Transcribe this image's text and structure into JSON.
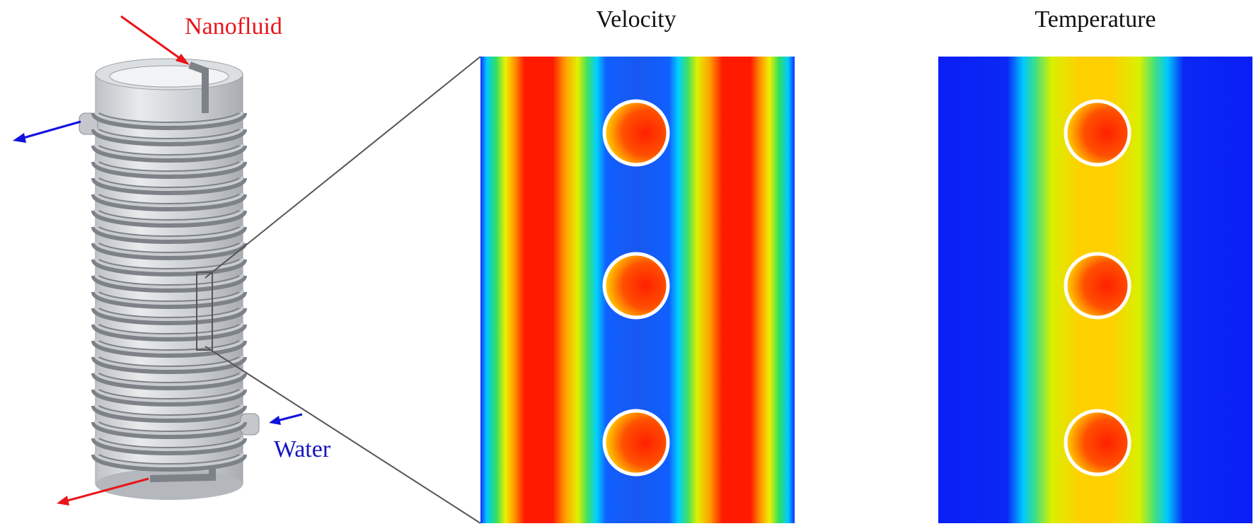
{
  "inlet_label": "Nanofluid",
  "outlet_label": "Water",
  "panels": [
    {
      "title": "Velocity"
    },
    {
      "title": "Temperature"
    }
  ]
}
